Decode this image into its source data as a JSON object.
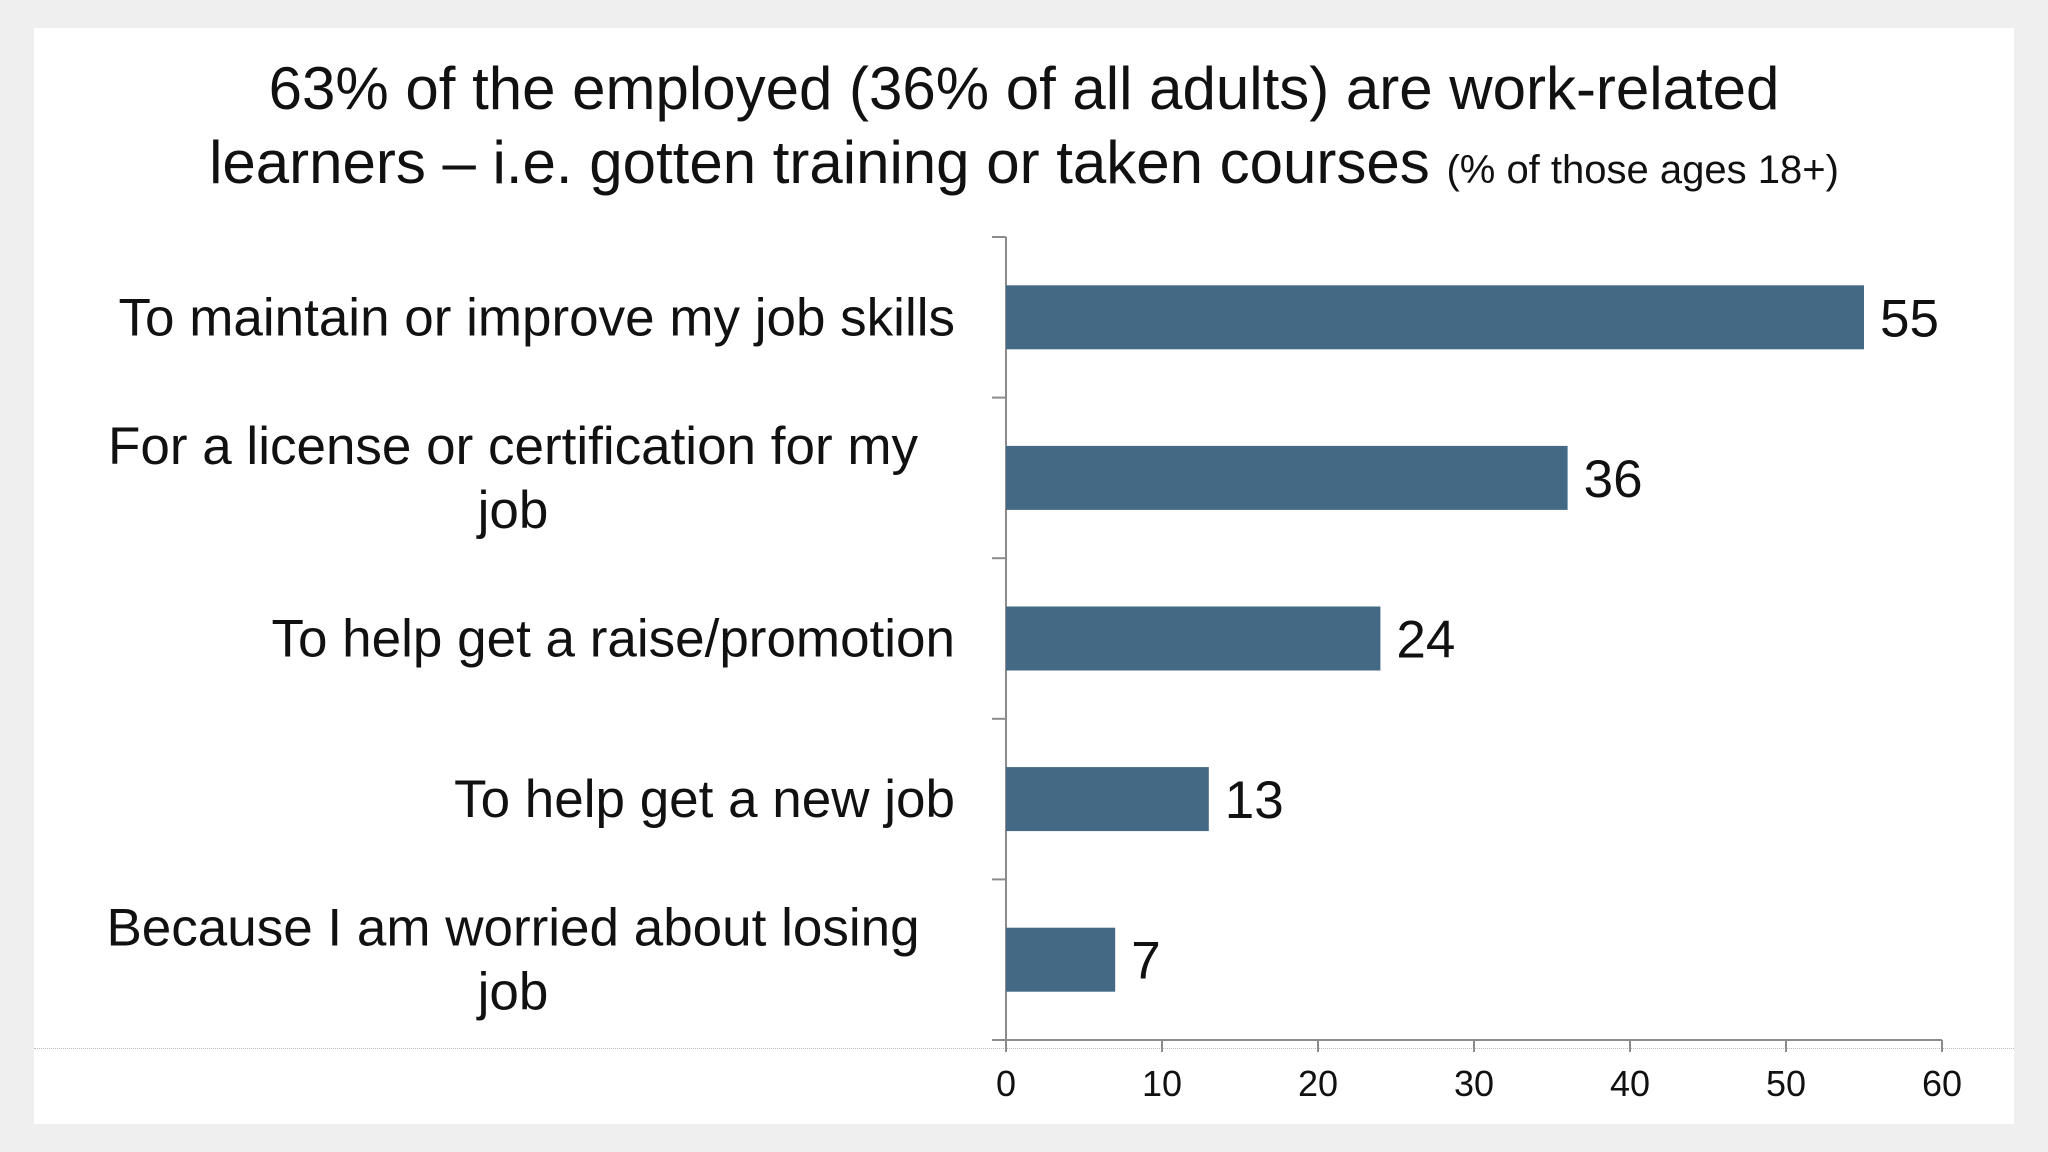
{
  "chart_data": {
    "type": "bar",
    "orientation": "horizontal",
    "title": "63% of the employed (36% of all adults) are work-related learners – i.e. gotten training or taken courses",
    "title_lines": [
      "63% of the employed (36% of all adults) are work-related",
      "learners – i.e. gotten training or taken courses"
    ],
    "subtitle": "(% of those ages 18+)",
    "categories": [
      "To maintain or improve my job skills",
      "For a license or  certification for my job",
      "To help get a raise/promotion",
      "To help get a new job",
      "Because  I am worried about losing job"
    ],
    "category_lines": [
      [
        "To maintain or improve my job skills"
      ],
      [
        "For a license or  certification for my",
        "job"
      ],
      [
        "To help get a raise/promotion"
      ],
      [
        "To help get a new job"
      ],
      [
        "Because  I am worried about losing",
        "job"
      ]
    ],
    "values": [
      55,
      36,
      24,
      13,
      7
    ],
    "value_labels": [
      "55",
      "36",
      "24",
      "13",
      "7"
    ],
    "xlim": [
      0,
      60
    ],
    "xticks": [
      0,
      10,
      20,
      30,
      40,
      50,
      60
    ],
    "xtick_labels": [
      "0",
      "10",
      "20",
      "30",
      "40",
      "50",
      "60"
    ],
    "xlabel": "",
    "ylabel": "",
    "grid": false,
    "legend": "none",
    "bar_color": "#446984"
  }
}
